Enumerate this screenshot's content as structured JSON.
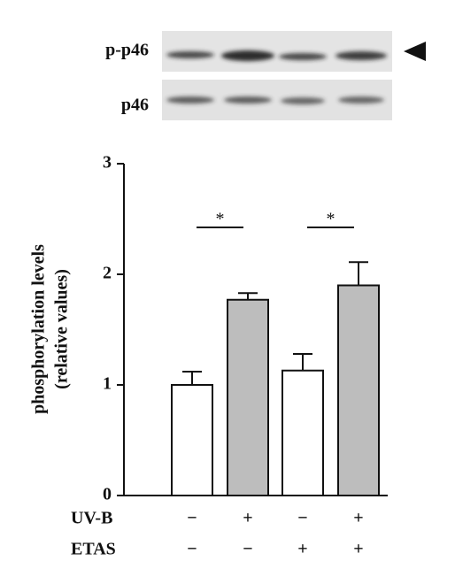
{
  "blot": {
    "rows": [
      "p-p46",
      "p46"
    ]
  },
  "chart_data": {
    "type": "bar",
    "y_label": [
      "phosphorylation levels",
      "(relative values)"
    ],
    "values": [
      1.0,
      1.77,
      1.13,
      1.9
    ],
    "errors": [
      0.12,
      0.06,
      0.15,
      0.21
    ],
    "colors": [
      "#ffffff",
      "#bdbdbd",
      "#ffffff",
      "#bdbdbd"
    ],
    "ylim": [
      0,
      3
    ],
    "yticks": [
      0,
      1,
      2,
      3
    ],
    "annotations": [
      "*",
      "*"
    ],
    "conditions": [
      {
        "name": "UV-B",
        "values": [
          "−",
          "+",
          "−",
          "+"
        ]
      },
      {
        "name": "ETAS",
        "values": [
          "−",
          "−",
          "+",
          "+"
        ]
      }
    ]
  }
}
